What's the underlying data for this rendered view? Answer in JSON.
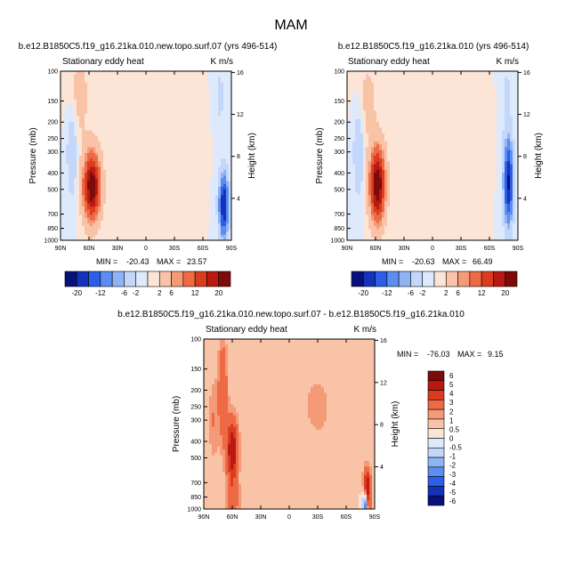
{
  "figure": {
    "title": "MAM"
  },
  "colors": {
    "levels12": [
      "#08107a",
      "#1433b8",
      "#2c5ee8",
      "#5b8ef0",
      "#8fb4f5",
      "#c3d7fb",
      "#deeafc",
      "#fce5d6",
      "#f8c3a6",
      "#f59a77",
      "#ee6a45",
      "#da3c1f",
      "#b81a12",
      "#7e0a0a"
    ],
    "levels_diff": [
      "#08107a",
      "#1433b8",
      "#2c5ee8",
      "#5b8ef0",
      "#8fb4f5",
      "#c3d7fb",
      "#deeafc",
      "#fce5d6",
      "#f8c3a6",
      "#f59a77",
      "#ee6a45",
      "#da3c1f",
      "#b81a12",
      "#7e0a0a"
    ],
    "background": "#ffffff"
  },
  "chart_data": [
    {
      "type": "heatmap",
      "title": "b.e12.B1850C5.f19_g16.21ka.010.new.topo.surf.07 (yrs 496-514)",
      "subtitle_left": "Stationary eddy heat",
      "units": "K m/s",
      "ylabel": "Pressure (mb)",
      "ylabel_right": "Height (km)",
      "x_ticks": [
        "90N",
        "60N",
        "30N",
        "0",
        "30S",
        "60S",
        "90S"
      ],
      "y_ticks": [
        "100",
        "150",
        "200",
        "250",
        "300",
        "400",
        "500",
        "700",
        "850",
        "1000"
      ],
      "y_ticks_right": [
        "16",
        "12",
        "8",
        "4"
      ],
      "stats": {
        "min_label": "MIN =",
        "min": "-20.43",
        "max_label": "MAX =",
        "max": "23.57"
      },
      "features": [
        {
          "lat": 57,
          "p": 480,
          "amp": 23.5,
          "wlat": 9,
          "wz": 3.2
        },
        {
          "lat": 70,
          "p": 140,
          "amp": 3.5,
          "wlat": 10,
          "wz": 4
        },
        {
          "lat": -82,
          "p": 620,
          "amp": -20.4,
          "wlat": 5,
          "wz": 3
        },
        {
          "lat": 78,
          "p": 300,
          "amp": -6,
          "wlat": 5,
          "wz": 4
        },
        {
          "lat": -30,
          "p": 250,
          "amp": 1.2,
          "wlat": 20,
          "wz": 4
        },
        {
          "lat": -78,
          "p": 140,
          "amp": -3,
          "wlat": 5,
          "wz": 3
        }
      ]
    },
    {
      "type": "heatmap",
      "title": "b.e12.B1850C5.f19_g16.21ka.010 (yrs 496-514)",
      "subtitle_left": "Stationary eddy heat",
      "units": "K m/s",
      "ylabel": "Pressure (mb)",
      "ylabel_right": "Height (km)",
      "x_ticks": [
        "90N",
        "60N",
        "30N",
        "0",
        "30S",
        "60S",
        "90S"
      ],
      "y_ticks": [
        "100",
        "150",
        "200",
        "250",
        "300",
        "400",
        "500",
        "700",
        "850",
        "1000"
      ],
      "y_ticks_right": [
        "16",
        "12",
        "8",
        "4"
      ],
      "stats": {
        "min_label": "MIN =",
        "min": "-20.63",
        "max_label": "MAX =",
        "max": "66.49"
      },
      "features": [
        {
          "lat": 58,
          "p": 470,
          "amp": 24,
          "wlat": 8,
          "wz": 3.5
        },
        {
          "lat": 68,
          "p": 150,
          "amp": 3,
          "wlat": 10,
          "wz": 4
        },
        {
          "lat": -80,
          "p": 450,
          "amp": -20.6,
          "wlat": 5,
          "wz": 4
        },
        {
          "lat": 78,
          "p": 300,
          "amp": -6,
          "wlat": 5,
          "wz": 4
        },
        {
          "lat": -30,
          "p": 250,
          "amp": 1.2,
          "wlat": 20,
          "wz": 4
        },
        {
          "lat": -78,
          "p": 140,
          "amp": -3,
          "wlat": 5,
          "wz": 3
        }
      ]
    },
    {
      "type": "heatmap",
      "title": "b.e12.B1850C5.f19_g16.21ka.010.new.topo.surf.07 - b.e12.B1850C5.f19_g16.21ka.010",
      "subtitle_left": "Stationary eddy heat",
      "units": "K m/s",
      "ylabel": "Pressure (mb)",
      "ylabel_right": "Height (km)",
      "x_ticks": [
        "90N",
        "60N",
        "30N",
        "0",
        "30S",
        "60S",
        "90S"
      ],
      "y_ticks": [
        "100",
        "150",
        "200",
        "250",
        "300",
        "400",
        "500",
        "700",
        "850",
        "1000"
      ],
      "y_ticks_right": [
        "16",
        "12",
        "8",
        "4"
      ],
      "stats": {
        "min_label": "MIN =",
        "min": "-76.03",
        "max_label": "MAX =",
        "max": "9.15"
      },
      "features": [
        {
          "lat": 60,
          "p": 450,
          "amp": 4,
          "wlat": 6,
          "wz": 3
        },
        {
          "lat": 70,
          "p": 200,
          "amp": 2,
          "wlat": 5,
          "wz": 5
        },
        {
          "lat": 60,
          "p": 900,
          "amp": 1.5,
          "wlat": 8,
          "wz": 2
        },
        {
          "lat": -82,
          "p": 800,
          "amp": 5,
          "wlat": 4,
          "wz": 2
        },
        {
          "lat": -80,
          "p": 950,
          "amp": -6,
          "wlat": 3,
          "wz": 1.5
        },
        {
          "lat": 80,
          "p": 300,
          "amp": 1,
          "wlat": 5,
          "wz": 4
        },
        {
          "lat": -30,
          "p": 250,
          "amp": 0.6,
          "wlat": 25,
          "wz": 5
        }
      ]
    }
  ],
  "colorbar_shared": {
    "labels": [
      "-20",
      "-12",
      "-6",
      "-2",
      "2",
      "6",
      "12",
      "20"
    ]
  },
  "colorbar_diff": {
    "labels": [
      "6",
      "5",
      "4",
      "3",
      "2",
      "1",
      "0.5",
      "0",
      "-0.5",
      "-1",
      "-2",
      "-3",
      "-4",
      "-5",
      "-6"
    ]
  }
}
